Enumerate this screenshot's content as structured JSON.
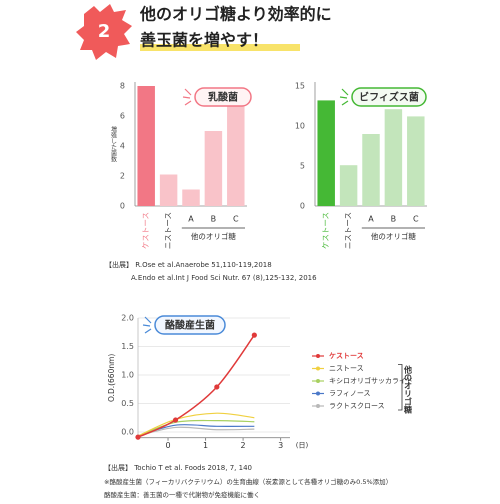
{
  "header": {
    "number": "2",
    "title_lines": [
      "他のオリゴ糖より効率的に",
      "善玉菌を増やす！"
    ]
  },
  "chart_data": [
    {
      "type": "bar",
      "title": "乳酸菌",
      "ylabel": "増殖した菌数",
      "categories": [
        "ケストース",
        "ニストース",
        "A",
        "B",
        "C"
      ],
      "values": [
        8.0,
        2.1,
        1.1,
        5.0,
        7.0
      ],
      "colors": [
        "#f27785",
        "#f9c3c9",
        "#f9c3c9",
        "#f9c3c9",
        "#f9c3c9"
      ],
      "group_label": "他のオリゴ糖",
      "ylim": [
        0,
        8
      ],
      "yticks": [
        0,
        2,
        4,
        6,
        8
      ]
    },
    {
      "type": "bar",
      "title": "ビフィズス菌",
      "categories": [
        "ケストース",
        "ニストース",
        "A",
        "B",
        "C"
      ],
      "values": [
        13.2,
        5.1,
        9.0,
        12.1,
        11.2
      ],
      "colors": [
        "#45b835",
        "#c3e5bb",
        "#c3e5bb",
        "#c3e5bb",
        "#c3e5bb"
      ],
      "group_label": "他のオリゴ糖",
      "ylim": [
        0,
        15
      ],
      "yticks": [
        0,
        5,
        10,
        15
      ]
    },
    {
      "type": "line",
      "title": "酪酸産生菌",
      "ylabel": "O.D.(660nm)",
      "xlabel": "(日)",
      "x": [
        -0.8,
        0.2,
        1.3,
        2.3
      ],
      "series": [
        {
          "name": "ケストース",
          "color": "#e03a3a",
          "values": [
            -0.09,
            0.21,
            0.79,
            1.7
          ],
          "markers": true
        },
        {
          "name": "ニストース",
          "color": "#f0d040",
          "values": [
            -0.07,
            0.22,
            0.33,
            0.25
          ]
        },
        {
          "name": "キシロオリゴサッカライド",
          "color": "#a8d060",
          "values": [
            -0.07,
            0.17,
            0.2,
            0.18
          ]
        },
        {
          "name": "ラフィノース",
          "color": "#4a78c8",
          "values": [
            -0.07,
            0.12,
            0.1,
            0.1
          ]
        },
        {
          "name": "ラクトスクロース",
          "color": "#b8b8b8",
          "values": [
            -0.07,
            0.08,
            0.04,
            0.05
          ]
        }
      ],
      "group_label": "他のオリゴ糖",
      "xlim": [
        -0.8,
        3.25
      ],
      "xticks": [
        0,
        1,
        2,
        3
      ],
      "ylim": [
        -0.1,
        2.0
      ],
      "yticks": [
        {
          "value": 0,
          "label": "0.0"
        },
        0.5,
        {
          "value": 1,
          "label": "1.0"
        },
        1.5,
        {
          "value": 2,
          "label": "2.0"
        }
      ],
      "grid": true
    }
  ],
  "citations": {
    "bars": [
      "【出展】 R.Ose et al.Anaerobe 51,110-119,2018",
      "A.Endo et al.Int J Food Sci Nutr. 67 (8),125-132, 2016"
    ],
    "line": [
      "【出展】 Tochio T et al. Foods 2018, 7, 140",
      "※酪酸産生菌（フィーカリバクテリウム）の生育曲線（炭素源として各種オリゴ糖のみ0.5%添加）",
      "酪酸産生菌：善玉菌の一種で代謝物が免疫機能に働く"
    ]
  }
}
